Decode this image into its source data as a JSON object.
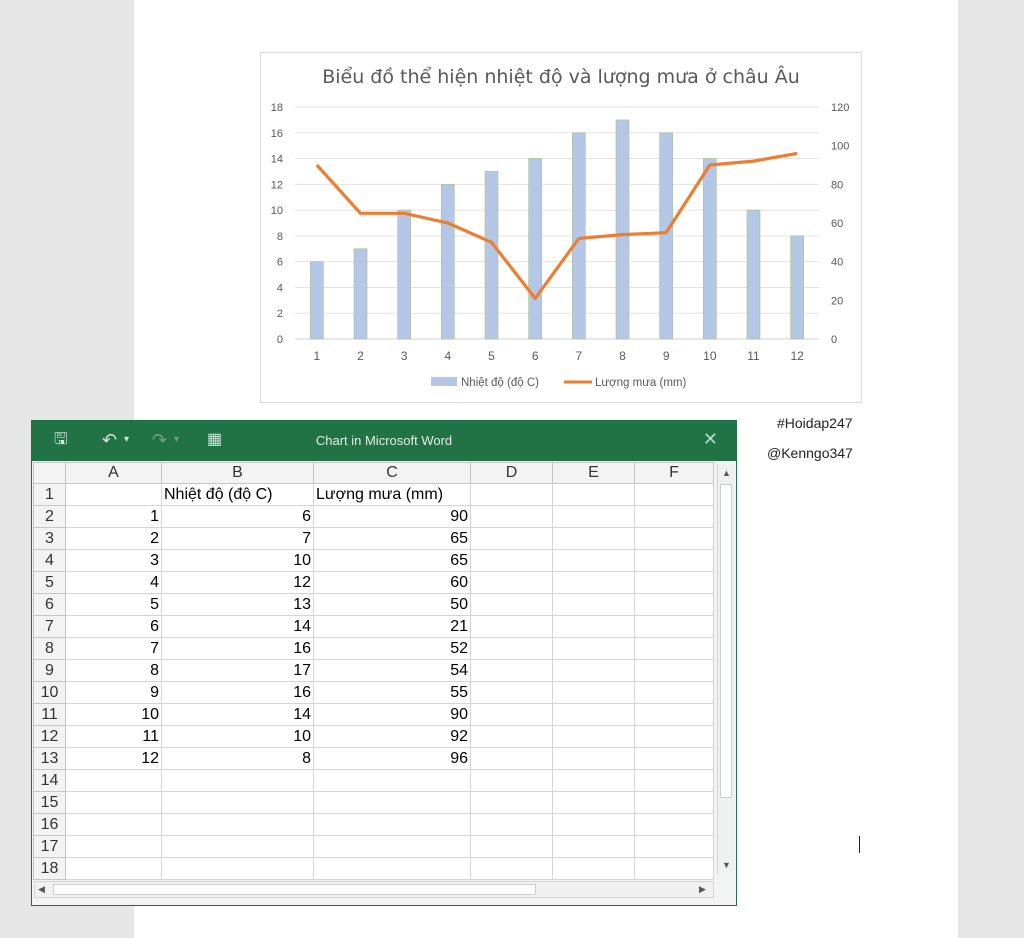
{
  "side_tags": [
    "#Hoidap247",
    "@Kenngo347"
  ],
  "chart_data": {
    "type": "bar",
    "title": "Biểu đồ thể hiện nhiệt độ và lượng mưa ở châu Âu",
    "categories": [
      "1",
      "2",
      "3",
      "4",
      "5",
      "6",
      "7",
      "8",
      "9",
      "10",
      "11",
      "12"
    ],
    "series": [
      {
        "name": "Nhiệt độ (độ C)",
        "type": "bar",
        "axis": "left",
        "color": "#b4c7e7",
        "values": [
          6,
          7,
          10,
          12,
          13,
          14,
          16,
          17,
          16,
          14,
          10,
          8
        ]
      },
      {
        "name": "Lượng mưa (mm)",
        "type": "line",
        "axis": "right",
        "color": "#ed7d31",
        "values": [
          90,
          65,
          65,
          60,
          50,
          21,
          52,
          54,
          55,
          90,
          92,
          96
        ]
      }
    ],
    "y_left": {
      "min": 0,
      "max": 18,
      "ticks": [
        "0",
        "2",
        "4",
        "6",
        "8",
        "10",
        "12",
        "14",
        "16",
        "18"
      ]
    },
    "y_right": {
      "min": 0,
      "max": 120,
      "ticks": [
        "0",
        "20",
        "40",
        "60",
        "80",
        "100",
        "120"
      ]
    },
    "grid": true,
    "legend_position": "bottom"
  },
  "excel": {
    "title": "Chart in Microsoft Word",
    "icons": {
      "save": "save-icon",
      "undo": "undo-icon",
      "redo": "redo-icon",
      "edit_data": "edit-data-icon",
      "close": "close-icon"
    },
    "column_headers": [
      "A",
      "B",
      "C",
      "D",
      "E",
      "F"
    ],
    "rows": [
      [
        "",
        "Nhiệt độ (độ C)",
        "Lượng mưa (mm)"
      ],
      [
        "1",
        "6",
        "90"
      ],
      [
        "2",
        "7",
        "65"
      ],
      [
        "3",
        "10",
        "65"
      ],
      [
        "4",
        "12",
        "60"
      ],
      [
        "5",
        "13",
        "50"
      ],
      [
        "6",
        "14",
        "21"
      ],
      [
        "7",
        "16",
        "52"
      ],
      [
        "8",
        "17",
        "54"
      ],
      [
        "9",
        "16",
        "55"
      ],
      [
        "10",
        "14",
        "90"
      ],
      [
        "11",
        "10",
        "92"
      ],
      [
        "12",
        "8",
        "96"
      ]
    ],
    "row_numbers": [
      "1",
      "2",
      "3",
      "4",
      "5",
      "6",
      "7",
      "8",
      "9",
      "10",
      "11",
      "12",
      "13",
      "14",
      "15",
      "16",
      "17",
      "18"
    ]
  }
}
